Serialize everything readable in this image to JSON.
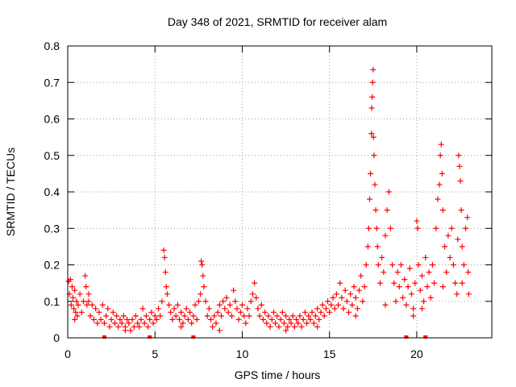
{
  "chart_data": {
    "type": "scatter",
    "title": "Day 348 of 2021, SRMTID for receiver alam",
    "xlabel": "GPS time / hours",
    "ylabel": "SRMTID / TECUs",
    "xlim": [
      0,
      24.3
    ],
    "ylim": [
      0,
      0.8
    ],
    "x_ticks": [
      0,
      5,
      10,
      15,
      20
    ],
    "y_ticks": [
      0,
      0.1,
      0.2,
      0.3,
      0.4,
      0.5,
      0.6,
      0.7,
      0.8
    ],
    "grid": true,
    "marker": "+",
    "color": "#ff0000",
    "series": [
      {
        "name": "SRMTID",
        "points": [
          [
            0.05,
            0.155
          ],
          [
            0.1,
            0.12
          ],
          [
            0.15,
            0.16
          ],
          [
            0.2,
            0.09
          ],
          [
            0.25,
            0.14
          ],
          [
            0.3,
            0.11
          ],
          [
            0.35,
            0.08
          ],
          [
            0.4,
            0.13
          ],
          [
            0.45,
            0.07
          ],
          [
            0.5,
            0.1
          ],
          [
            0.55,
            0.06
          ],
          [
            0.6,
            0.09
          ],
          [
            0.7,
            0.12
          ],
          [
            0.8,
            0.07
          ],
          [
            0.9,
            0.1
          ],
          [
            1.0,
            0.17
          ],
          [
            1.05,
            0.14
          ],
          [
            1.1,
            0.09
          ],
          [
            1.2,
            0.12
          ],
          [
            1.3,
            0.06
          ],
          [
            1.4,
            0.09
          ],
          [
            1.5,
            0.05
          ],
          [
            1.6,
            0.08
          ],
          [
            1.7,
            0.04
          ],
          [
            1.8,
            0.07
          ],
          [
            1.9,
            0.05
          ],
          [
            2.0,
            0.09
          ],
          [
            2.1,
            0.04
          ],
          [
            2.2,
            0.06
          ],
          [
            2.3,
            0.08
          ],
          [
            2.4,
            0.03
          ],
          [
            2.5,
            0.05
          ],
          [
            2.6,
            0.07
          ],
          [
            2.7,
            0.04
          ],
          [
            2.8,
            0.06
          ],
          [
            2.9,
            0.03
          ],
          [
            3.0,
            0.05
          ],
          [
            3.1,
            0.04
          ],
          [
            3.2,
            0.06
          ],
          [
            3.3,
            0.03
          ],
          [
            3.4,
            0.05
          ],
          [
            3.5,
            0.04
          ],
          [
            3.6,
            0.02
          ],
          [
            3.7,
            0.05
          ],
          [
            3.8,
            0.03
          ],
          [
            3.9,
            0.06
          ],
          [
            4.0,
            0.04
          ],
          [
            4.1,
            0.03
          ],
          [
            4.2,
            0.05
          ],
          [
            4.3,
            0.08
          ],
          [
            4.4,
            0.04
          ],
          [
            4.5,
            0.06
          ],
          [
            4.6,
            0.03
          ],
          [
            4.7,
            0.05
          ],
          [
            4.8,
            0.07
          ],
          [
            4.9,
            0.04
          ],
          [
            5.0,
            0.06
          ],
          [
            5.1,
            0.05
          ],
          [
            5.2,
            0.08
          ],
          [
            5.3,
            0.06
          ],
          [
            5.4,
            0.1
          ],
          [
            5.5,
            0.24
          ],
          [
            5.55,
            0.22
          ],
          [
            5.6,
            0.18
          ],
          [
            5.65,
            0.14
          ],
          [
            5.7,
            0.12
          ],
          [
            5.8,
            0.09
          ],
          [
            5.9,
            0.07
          ],
          [
            6.0,
            0.05
          ],
          [
            6.1,
            0.08
          ],
          [
            6.2,
            0.06
          ],
          [
            6.3,
            0.09
          ],
          [
            6.4,
            0.05
          ],
          [
            6.5,
            0.07
          ],
          [
            6.6,
            0.04
          ],
          [
            6.7,
            0.06
          ],
          [
            6.8,
            0.08
          ],
          [
            6.9,
            0.05
          ],
          [
            7.0,
            0.07
          ],
          [
            7.1,
            0.04
          ],
          [
            7.2,
            0.06
          ],
          [
            7.3,
            0.09
          ],
          [
            7.4,
            0.05
          ],
          [
            7.5,
            0.1
          ],
          [
            7.6,
            0.12
          ],
          [
            7.65,
            0.21
          ],
          [
            7.7,
            0.2
          ],
          [
            7.75,
            0.17
          ],
          [
            7.8,
            0.14
          ],
          [
            7.9,
            0.1
          ],
          [
            8.0,
            0.06
          ],
          [
            8.1,
            0.08
          ],
          [
            8.2,
            0.05
          ],
          [
            8.3,
            0.03
          ],
          [
            8.4,
            0.06
          ],
          [
            8.5,
            0.04
          ],
          [
            8.6,
            0.07
          ],
          [
            8.7,
            0.09
          ],
          [
            8.8,
            0.06
          ],
          [
            8.9,
            0.1
          ],
          [
            9.0,
            0.08
          ],
          [
            9.1,
            0.11
          ],
          [
            9.2,
            0.07
          ],
          [
            9.3,
            0.09
          ],
          [
            9.4,
            0.06
          ],
          [
            9.5,
            0.13
          ],
          [
            9.6,
            0.1
          ],
          [
            9.7,
            0.08
          ],
          [
            9.8,
            0.05
          ],
          [
            9.9,
            0.07
          ],
          [
            10.0,
            0.09
          ],
          [
            10.1,
            0.06
          ],
          [
            10.2,
            0.04
          ],
          [
            10.3,
            0.08
          ],
          [
            10.4,
            0.06
          ],
          [
            10.5,
            0.1
          ],
          [
            10.6,
            0.12
          ],
          [
            10.7,
            0.15
          ],
          [
            10.8,
            0.11
          ],
          [
            10.9,
            0.08
          ],
          [
            11.0,
            0.06
          ],
          [
            11.1,
            0.09
          ],
          [
            11.2,
            0.05
          ],
          [
            11.3,
            0.07
          ],
          [
            11.4,
            0.04
          ],
          [
            11.5,
            0.06
          ],
          [
            11.6,
            0.03
          ],
          [
            11.7,
            0.05
          ],
          [
            11.8,
            0.07
          ],
          [
            11.9,
            0.04
          ],
          [
            12.0,
            0.06
          ],
          [
            12.1,
            0.03
          ],
          [
            12.2,
            0.05
          ],
          [
            12.3,
            0.07
          ],
          [
            12.4,
            0.04
          ],
          [
            12.5,
            0.06
          ],
          [
            12.6,
            0.03
          ],
          [
            12.7,
            0.05
          ],
          [
            12.8,
            0.04
          ],
          [
            12.9,
            0.06
          ],
          [
            13.0,
            0.03
          ],
          [
            13.1,
            0.05
          ],
          [
            13.2,
            0.04
          ],
          [
            13.3,
            0.06
          ],
          [
            13.4,
            0.03
          ],
          [
            13.5,
            0.05
          ],
          [
            13.6,
            0.07
          ],
          [
            13.7,
            0.04
          ],
          [
            13.8,
            0.06
          ],
          [
            13.9,
            0.05
          ],
          [
            14.0,
            0.07
          ],
          [
            14.1,
            0.04
          ],
          [
            14.2,
            0.06
          ],
          [
            14.3,
            0.08
          ],
          [
            14.4,
            0.05
          ],
          [
            14.5,
            0.07
          ],
          [
            14.6,
            0.09
          ],
          [
            14.7,
            0.06
          ],
          [
            14.8,
            0.08
          ],
          [
            14.9,
            0.1
          ],
          [
            15.0,
            0.07
          ],
          [
            15.1,
            0.09
          ],
          [
            15.2,
            0.11
          ],
          [
            15.3,
            0.08
          ],
          [
            15.4,
            0.12
          ],
          [
            15.5,
            0.09
          ],
          [
            15.6,
            0.15
          ],
          [
            15.7,
            0.11
          ],
          [
            15.8,
            0.08
          ],
          [
            15.9,
            0.13
          ],
          [
            16.0,
            0.1
          ],
          [
            16.1,
            0.07
          ],
          [
            16.2,
            0.12
          ],
          [
            16.3,
            0.09
          ],
          [
            16.4,
            0.14
          ],
          [
            16.5,
            0.11
          ],
          [
            16.6,
            0.08
          ],
          [
            16.7,
            0.13
          ],
          [
            16.8,
            0.17
          ],
          [
            16.9,
            0.1
          ],
          [
            17.0,
            0.14
          ],
          [
            17.1,
            0.2
          ],
          [
            17.2,
            0.25
          ],
          [
            17.25,
            0.3
          ],
          [
            17.3,
            0.38
          ],
          [
            17.35,
            0.45
          ],
          [
            17.4,
            0.56
          ],
          [
            17.42,
            0.63
          ],
          [
            17.45,
            0.66
          ],
          [
            17.47,
            0.7
          ],
          [
            17.5,
            0.735
          ],
          [
            17.52,
            0.55
          ],
          [
            17.55,
            0.5
          ],
          [
            17.6,
            0.42
          ],
          [
            17.65,
            0.35
          ],
          [
            17.7,
            0.3
          ],
          [
            17.75,
            0.25
          ],
          [
            17.8,
            0.2
          ],
          [
            17.9,
            0.15
          ],
          [
            18.0,
            0.22
          ],
          [
            18.1,
            0.18
          ],
          [
            18.2,
            0.28
          ],
          [
            18.3,
            0.35
          ],
          [
            18.4,
            0.4
          ],
          [
            18.5,
            0.3
          ],
          [
            18.6,
            0.2
          ],
          [
            18.7,
            0.15
          ],
          [
            18.8,
            0.1
          ],
          [
            18.9,
            0.18
          ],
          [
            19.0,
            0.14
          ],
          [
            19.1,
            0.2
          ],
          [
            19.2,
            0.11
          ],
          [
            19.3,
            0.16
          ],
          [
            19.4,
            0.09
          ],
          [
            19.5,
            0.14
          ],
          [
            19.6,
            0.19
          ],
          [
            19.7,
            0.12
          ],
          [
            19.8,
            0.08
          ],
          [
            19.9,
            0.15
          ],
          [
            20.0,
            0.32
          ],
          [
            20.05,
            0.3
          ],
          [
            20.1,
            0.2
          ],
          [
            20.2,
            0.13
          ],
          [
            20.3,
            0.17
          ],
          [
            20.4,
            0.1
          ],
          [
            20.5,
            0.22
          ],
          [
            20.6,
            0.14
          ],
          [
            20.7,
            0.18
          ],
          [
            20.8,
            0.11
          ],
          [
            20.9,
            0.2
          ],
          [
            21.0,
            0.15
          ],
          [
            21.1,
            0.3
          ],
          [
            21.2,
            0.38
          ],
          [
            21.3,
            0.42
          ],
          [
            21.35,
            0.5
          ],
          [
            21.4,
            0.53
          ],
          [
            21.45,
            0.45
          ],
          [
            21.5,
            0.35
          ],
          [
            21.6,
            0.25
          ],
          [
            21.7,
            0.18
          ],
          [
            21.8,
            0.28
          ],
          [
            21.9,
            0.22
          ],
          [
            22.0,
            0.3
          ],
          [
            22.1,
            0.2
          ],
          [
            22.2,
            0.15
          ],
          [
            22.3,
            0.12
          ],
          [
            22.35,
            0.27
          ],
          [
            22.4,
            0.5
          ],
          [
            22.45,
            0.47
          ],
          [
            22.5,
            0.43
          ],
          [
            22.55,
            0.35
          ],
          [
            22.6,
            0.25
          ],
          [
            22.7,
            0.2
          ],
          [
            22.8,
            0.3
          ],
          [
            22.9,
            0.33
          ],
          [
            22.95,
            0.18
          ],
          [
            22.98,
            0.12
          ],
          [
            22.6,
            0.15
          ],
          [
            21.5,
            0.14
          ],
          [
            20.3,
            0.08
          ],
          [
            0.4,
            0.05
          ],
          [
            1.2,
            0.1
          ],
          [
            3.3,
            0.02
          ],
          [
            6.5,
            0.03
          ],
          [
            8.7,
            0.02
          ],
          [
            12.5,
            0.02
          ],
          [
            14.3,
            0.03
          ],
          [
            16.5,
            0.06
          ],
          [
            18.2,
            0.09
          ],
          [
            19.8,
            0.06
          ]
        ]
      }
    ],
    "gap_markers_x": [
      2.1,
      4.7,
      7.2,
      19.4,
      20.5
    ]
  }
}
